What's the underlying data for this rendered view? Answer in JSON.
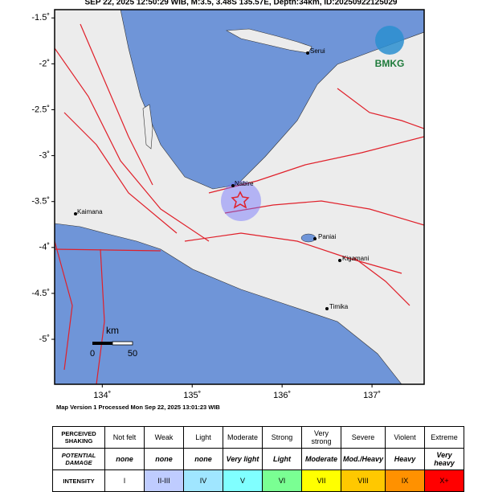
{
  "title": "SEP 22, 2025 12:50:29 WIB, M:3.5, 3.48S 135.57E, Depth:34km, ID:20250922125029",
  "map": {
    "xlim": [
      133.47,
      137.58
    ],
    "ylim": [
      -5.49,
      -1.41
    ],
    "lon_ticks": [
      {
        "value": 134,
        "label": "134˚"
      },
      {
        "value": 135,
        "label": "135˚"
      },
      {
        "value": 136,
        "label": "136˚"
      },
      {
        "value": 137,
        "label": "137˚"
      }
    ],
    "lat_ticks": [
      {
        "value": -1.5,
        "label": "-1.5˚"
      },
      {
        "value": -2,
        "label": "-2˚"
      },
      {
        "value": -2.5,
        "label": "-2.5˚"
      },
      {
        "value": -3,
        "label": "-3˚"
      },
      {
        "value": -3.5,
        "label": "-3.5˚"
      },
      {
        "value": -4,
        "label": "-4˚"
      },
      {
        "value": -4.5,
        "label": "-4.5˚"
      },
      {
        "value": -5,
        "label": "-5˚"
      }
    ],
    "places": [
      "Serui",
      "Nabire",
      "Kaimana",
      "Paniai",
      "Kigamani",
      "Timika"
    ],
    "scale": {
      "unit": "km",
      "ticks": [
        "0",
        "50"
      ]
    },
    "logo": "BMKG"
  },
  "footer": "Map Version 1 Processed Mon Sep 22, 2025 13:01:23 WIB",
  "table": {
    "rows": [
      {
        "header": "PERCEIVED SHAKING",
        "cells": [
          "Not felt",
          "Weak",
          "Light",
          "Moderate",
          "Strong",
          "Very strong",
          "Severe",
          "Violent",
          "Extreme"
        ]
      },
      {
        "header": "POTENTIAL DAMAGE",
        "cells": [
          "none",
          "none",
          "none",
          "Very light",
          "Light",
          "Moderate",
          "Mod./Heavy",
          "Heavy",
          "Very heavy"
        ]
      },
      {
        "header": "INTENSITY",
        "cells": [
          "I",
          "II-III",
          "IV",
          "V",
          "VI",
          "VII",
          "VIII",
          "IX",
          "X+"
        ],
        "colors": [
          "#ffffff",
          "#bfccff",
          "#a0e6ff",
          "#80ffff",
          "#7aff93",
          "#ffff00",
          "#ffc800",
          "#ff9100",
          "#ff0000"
        ]
      }
    ]
  }
}
